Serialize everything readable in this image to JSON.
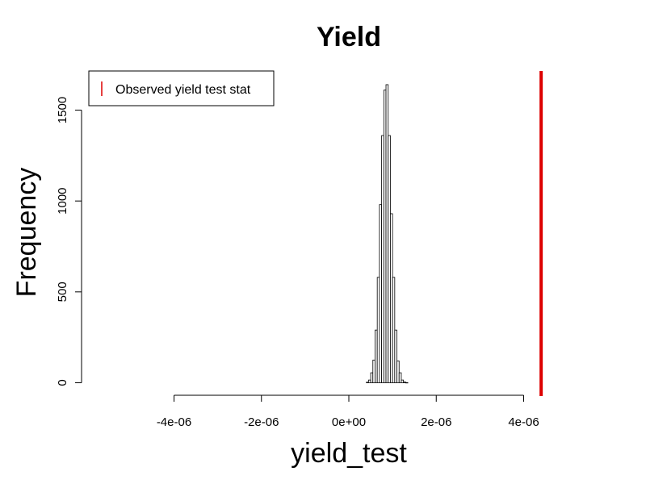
{
  "chart_data": {
    "type": "bar",
    "title": "Yield",
    "xlabel": "yield_test",
    "ylabel": "Frequency",
    "x_ticks": [
      -4e-06,
      -2e-06,
      0,
      2e-06,
      4e-06
    ],
    "x_tick_labels": [
      "-4e-06",
      "-2e-06",
      "0e+00",
      "2e-06",
      "4e-06"
    ],
    "y_ticks": [
      0,
      500,
      1000,
      1500
    ],
    "y_tick_labels": [
      "0",
      "500",
      "1000",
      "1500"
    ],
    "xlim": [
      -6e-06,
      4.4e-06
    ],
    "ylim": [
      0,
      1650
    ],
    "bin_width": 5e-08,
    "bin_left_edges": [
      4e-07,
      4.5e-07,
      5e-07,
      5.5e-07,
      6e-07,
      6.5e-07,
      7e-07,
      7.5e-07,
      8e-07,
      8.5e-07,
      9e-07,
      9.5e-07,
      1e-06,
      1.05e-06,
      1.1e-06,
      1.15e-06,
      1.2e-06,
      1.25e-06,
      1.3e-06
    ],
    "frequencies": [
      3,
      15,
      55,
      125,
      290,
      580,
      980,
      1360,
      1610,
      1640,
      1360,
      930,
      580,
      290,
      120,
      55,
      15,
      4,
      1
    ],
    "observed_value": 4.4e-06,
    "observed_color": "#dd0000",
    "legend": {
      "entries": [
        "Observed yield test stat"
      ],
      "placement": "top-left"
    },
    "grid": false
  }
}
